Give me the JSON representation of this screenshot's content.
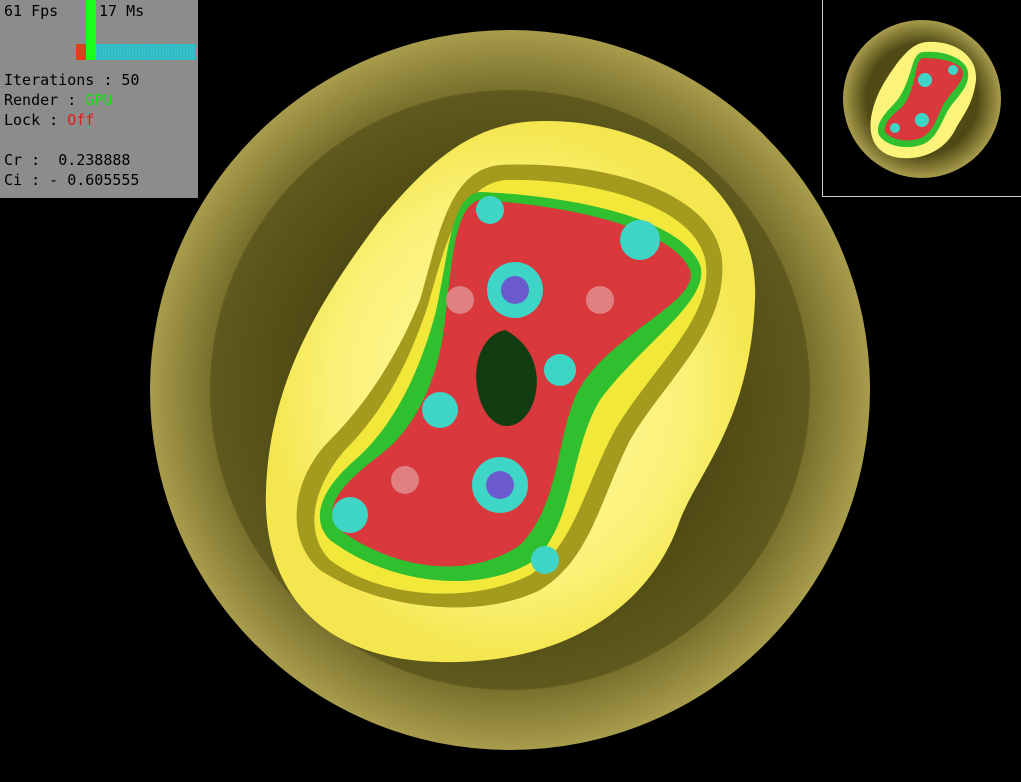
{
  "stats": {
    "fps_label": "61 Fps",
    "ms_label": "17 Ms",
    "fps_value": 61,
    "ms_value": 17
  },
  "settings": {
    "iterations_label": "Iterations :",
    "iterations_value": "50",
    "render_label": "Render :",
    "render_value": "GPU",
    "lock_label": "Lock :",
    "lock_value": "Off"
  },
  "constant": {
    "cr_label": "Cr :",
    "cr_value": "0.238888",
    "ci_label": "Ci :",
    "ci_value": "- 0.605555"
  },
  "colors": {
    "panel_bg": "#8c8c8c",
    "fps_bar": "#19ff19",
    "ms_bar": "#33c2c9",
    "fps_min_bar": "#d9421a",
    "gpu_text": "#14e314",
    "off_text": "#e61919",
    "outer_gold": "#c4b64a",
    "inner_yellow": "#fbf37a",
    "fractal_red": "#e0363a",
    "fractal_green": "#2ec42e",
    "fractal_cyan": "#3fd5c6"
  },
  "fractal": {
    "type": "julia-set",
    "cr": 0.238888,
    "ci": -0.605555,
    "iterations": 50
  }
}
